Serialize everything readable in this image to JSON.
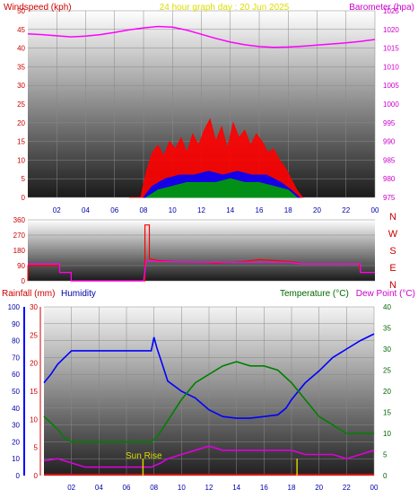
{
  "chart_data": [
    {
      "type": "line",
      "title": "24 hour graph day : 20 Jun 2025",
      "ylabel_left": "Windspeed (kph)",
      "ylabel_right": "Barometer (hpa)",
      "x_ticks": [
        "02",
        "04",
        "06",
        "08",
        "10",
        "12",
        "14",
        "16",
        "18",
        "20",
        "22",
        "00"
      ],
      "ylim_left": [
        0,
        50
      ],
      "y_ticks_left": [
        "0",
        "5",
        "10",
        "15",
        "20",
        "25",
        "30",
        "35",
        "40",
        "45",
        "50"
      ],
      "ylim_right": [
        975,
        1025
      ],
      "y_ticks_right": [
        "975",
        "980",
        "985",
        "990",
        "995",
        "1000",
        "1005",
        "1010",
        "1015",
        "1020",
        "1025"
      ],
      "series": [
        {
          "name": "Barometer",
          "axis": "right",
          "color": "#ff00ff",
          "x": [
            0,
            1,
            2,
            3,
            4,
            5,
            6,
            7,
            8,
            9,
            10,
            11,
            12,
            13,
            14,
            15,
            16,
            17,
            18,
            19,
            20,
            21,
            22,
            23,
            24
          ],
          "y": [
            1018.8,
            1018.6,
            1018.3,
            1018.0,
            1018.2,
            1018.6,
            1019.2,
            1019.9,
            1020.4,
            1020.8,
            1020.6,
            1019.8,
            1018.7,
            1017.6,
            1016.6,
            1015.9,
            1015.4,
            1015.2,
            1015.3,
            1015.5,
            1015.8,
            1016.1,
            1016.4,
            1016.8,
            1017.3
          ]
        },
        {
          "name": "Gust",
          "axis": "left",
          "color": "#ff0000",
          "x": [
            7,
            7.8,
            8.2,
            8.6,
            9,
            9.4,
            9.8,
            10.2,
            10.6,
            11,
            11.4,
            11.8,
            12.2,
            12.6,
            13,
            13.4,
            13.8,
            14.2,
            14.6,
            15,
            15.4,
            15.8,
            16.2,
            16.6,
            17,
            17.4,
            17.8,
            18.2,
            18.6,
            19
          ],
          "y": [
            0,
            0,
            7,
            12,
            14,
            11,
            15,
            13,
            16,
            12,
            17,
            14,
            18,
            21,
            15,
            19,
            13,
            20,
            16,
            18,
            14,
            17,
            15,
            12,
            13,
            10,
            8,
            5,
            2,
            0
          ]
        },
        {
          "name": "Average speed",
          "axis": "left",
          "color": "#0000ff",
          "x": [
            8,
            8.6,
            9.5,
            10.5,
            11.5,
            12.5,
            13.5,
            14.5,
            15.5,
            16.5,
            17.5,
            18.2,
            18.8
          ],
          "y": [
            0,
            3,
            5,
            6,
            6,
            7,
            6,
            7,
            6,
            6,
            4,
            2,
            0
          ]
        },
        {
          "name": "Calm",
          "axis": "left",
          "color": "#00a000",
          "x": [
            8.2,
            9,
            10,
            11,
            12,
            13,
            14,
            15,
            16,
            17,
            18,
            18.6
          ],
          "y": [
            0,
            2,
            3,
            4,
            4,
            4,
            5,
            4,
            4,
            3,
            2,
            0
          ]
        }
      ]
    },
    {
      "type": "line",
      "ylabel": "Wind direction",
      "x_ticks": [],
      "ylim": [
        0,
        360
      ],
      "y_ticks": [
        "0",
        "90",
        "180",
        "270",
        "360"
      ],
      "direction_labels": [
        "N",
        "W",
        "S",
        "E",
        "N"
      ],
      "series": [
        {
          "name": "Direction",
          "color": "#ff0000",
          "x": [
            0,
            0.01,
            2.2,
            2.2,
            3.0,
            3.0,
            8.0,
            8.1,
            8.1,
            8.4,
            8.4,
            9,
            10,
            11,
            12,
            13,
            14,
            15,
            16,
            17,
            18,
            18.5,
            19,
            20,
            21,
            22,
            22.9,
            23.0,
            24
          ],
          "y": [
            0,
            90,
            90,
            50,
            50,
            0,
            0,
            0,
            330,
            330,
            130,
            120,
            115,
            110,
            110,
            105,
            110,
            115,
            125,
            120,
            115,
            110,
            100,
            100,
            100,
            100,
            100,
            50,
            50
          ]
        },
        {
          "name": "Direction average",
          "color": "#ff00ff",
          "x": [
            0,
            2.2,
            2.2,
            3.0,
            3.0,
            8.0,
            8.2,
            9,
            12,
            15,
            18,
            19,
            20,
            22,
            23,
            23,
            24
          ],
          "y": [
            100,
            100,
            50,
            50,
            0,
            0,
            120,
            115,
            110,
            110,
            110,
            100,
            100,
            100,
            100,
            50,
            50
          ]
        }
      ]
    },
    {
      "type": "line",
      "ylabel_left": "Rainfall (mm)",
      "ylabel_left2": "Humidity",
      "ylabel_right": "Temperature (°C)",
      "ylabel_right2": "Dew Point (°C)",
      "x_ticks": [
        "02",
        "04",
        "06",
        "08",
        "10",
        "12",
        "14",
        "16",
        "18",
        "20",
        "22",
        "00"
      ],
      "ylim_humidity": [
        0,
        100
      ],
      "y_ticks_humidity": [
        "0",
        "10",
        "20",
        "30",
        "40",
        "50",
        "60",
        "70",
        "80",
        "90",
        "100"
      ],
      "ylim_rain": [
        0,
        30
      ],
      "y_ticks_rain": [
        "0",
        "5",
        "10",
        "15",
        "20",
        "25",
        "30"
      ],
      "ylim_temp": [
        0,
        40
      ],
      "y_ticks_temp": [
        "0",
        "5",
        "10",
        "15",
        "20",
        "25",
        "30",
        "35",
        "40"
      ],
      "annotation": "Sun Rise",
      "series": [
        {
          "name": "Humidity",
          "axis": "humidity",
          "color": "#0000ff",
          "x": [
            0,
            0.5,
            1,
            1.5,
            2,
            3,
            4,
            5,
            6,
            7,
            7.8,
            8.0,
            8.2,
            8.6,
            9,
            10,
            11,
            12,
            13,
            14,
            15,
            16,
            17,
            17.6,
            18,
            19,
            20,
            21,
            22,
            23,
            24
          ],
          "y": [
            55,
            60,
            66,
            70,
            74,
            74,
            74,
            74,
            74,
            74,
            74,
            82,
            76,
            66,
            56,
            50,
            46,
            39,
            35,
            34,
            34,
            35,
            36,
            40,
            45,
            55,
            62,
            70,
            75,
            80,
            84
          ]
        },
        {
          "name": "Temperature",
          "axis": "temp",
          "color": "#008000",
          "x": [
            0,
            1,
            1.5,
            2,
            4,
            6,
            7,
            7.8,
            8.2,
            9,
            10,
            11,
            12,
            13,
            14,
            15,
            16,
            17,
            18,
            19,
            20,
            21,
            22,
            23,
            24
          ],
          "y": [
            14,
            11,
            9,
            8,
            8,
            8,
            8,
            8,
            9,
            13,
            18,
            22,
            24,
            26,
            27,
            26,
            26,
            25,
            22,
            18,
            14,
            12,
            10,
            10,
            10
          ]
        },
        {
          "name": "Dew Point",
          "axis": "temp",
          "color": "#dd00dd",
          "x": [
            0,
            1,
            2,
            3,
            4,
            5,
            6,
            7,
            7.8,
            8.5,
            9,
            10,
            11,
            12,
            13,
            14,
            15,
            16,
            17,
            18,
            19,
            20,
            21,
            22,
            23,
            24
          ],
          "y": [
            3.5,
            4,
            3,
            2,
            2,
            2,
            2,
            2,
            2,
            3,
            4,
            5,
            6,
            7,
            6,
            6,
            6,
            6,
            6,
            6,
            5,
            5,
            5,
            4,
            5,
            6
          ]
        },
        {
          "name": "Rainfall",
          "axis": "rain",
          "color": "#ff0000",
          "x": [
            0,
            24
          ],
          "y": [
            0.2,
            0.2
          ]
        }
      ],
      "markers": [
        {
          "x": 7.2,
          "height": 3,
          "color": "#ddcc00"
        },
        {
          "x": 18.4,
          "height": 3,
          "color": "#ddcc00"
        }
      ]
    }
  ]
}
